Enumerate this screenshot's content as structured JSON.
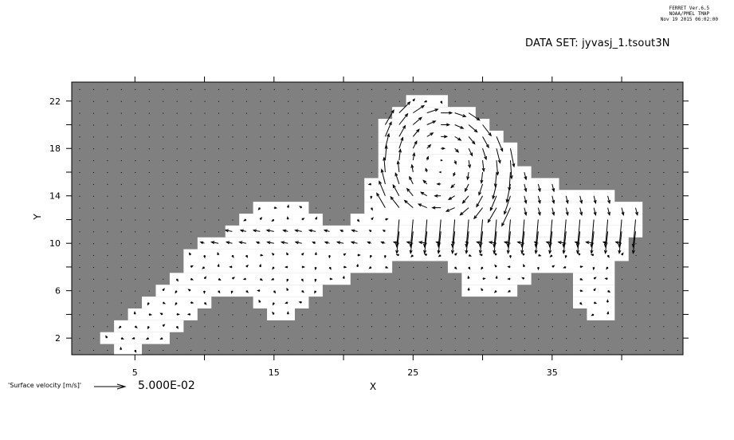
{
  "header": {
    "program": "FERRET  Ver.6.5",
    "org": "NOAA/PMEL TMAP",
    "date": "Nov 19 2015 06:02:00",
    "dataset": "DATA SET: jyvasj_1.tsout3N"
  },
  "chart_data": {
    "type": "vector",
    "title": "",
    "xlabel": "X",
    "ylabel": "Y",
    "xlim": [
      0.5,
      44.5
    ],
    "ylim": [
      0.6,
      23.7
    ],
    "x_ticks_labeled": [
      5,
      15,
      25,
      35
    ],
    "x_ticks_minor": [
      10,
      20,
      30,
      40
    ],
    "y_ticks_labeled": [
      2,
      6,
      10,
      14,
      18,
      22
    ],
    "y_ticks_minor": [
      4,
      8,
      12,
      16,
      20
    ],
    "land_color": "#808080",
    "water_color": "#ffffff",
    "water_mask_rows": {
      "1": [
        [
          4,
          5
        ]
      ],
      "2": [
        [
          3,
          7
        ]
      ],
      "3": [
        [
          4,
          8
        ]
      ],
      "4": [
        [
          5,
          9
        ],
        [
          15,
          16
        ],
        [
          38,
          39
        ]
      ],
      "5": [
        [
          6,
          10
        ],
        [
          14,
          17
        ],
        [
          37,
          39
        ]
      ],
      "6": [
        [
          7,
          18
        ],
        [
          29,
          32
        ],
        [
          37,
          39
        ]
      ],
      "7": [
        [
          8,
          20
        ],
        [
          29,
          33
        ],
        [
          37,
          39
        ]
      ],
      "8": [
        [
          9,
          23
        ],
        [
          28,
          39
        ]
      ],
      "9": [
        [
          9,
          40
        ]
      ],
      "10": [
        [
          10,
          40
        ]
      ],
      "11": [
        [
          12,
          41
        ]
      ],
      "12": [
        [
          13,
          18
        ],
        [
          21,
          41
        ]
      ],
      "13": [
        [
          14,
          17
        ],
        [
          22,
          41
        ]
      ],
      "14": [
        [
          22,
          39
        ]
      ],
      "15": [
        [
          22,
          35
        ]
      ],
      "16": [
        [
          23,
          33
        ]
      ],
      "17": [
        [
          23,
          32
        ]
      ],
      "18": [
        [
          23,
          32
        ]
      ],
      "19": [
        [
          23,
          31
        ]
      ],
      "20": [
        [
          23,
          30
        ]
      ],
      "21": [
        [
          24,
          29
        ]
      ],
      "22": [
        [
          25,
          27
        ]
      ]
    },
    "reference_vector": {
      "label": "'Surface velocity [m/s]'",
      "value": "5.000E-02",
      "magnitude": 0.05
    }
  }
}
